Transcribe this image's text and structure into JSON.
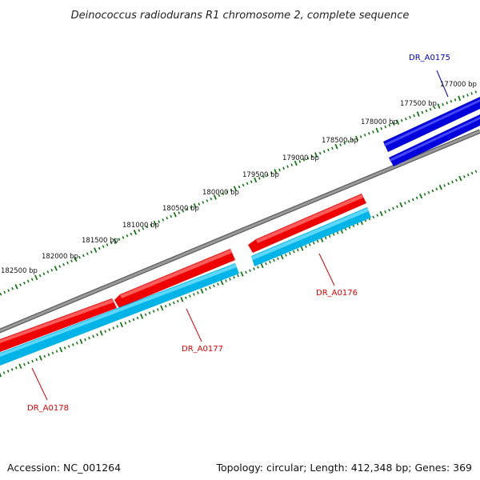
{
  "title": "Deinococcus radiodurans R1 chromosome 2, complete sequence",
  "footer": {
    "accession": "Accession: NC_001264",
    "summary": "Topology: circular; Length: 412,348 bp; Genes: 369"
  },
  "colors": {
    "backbone": "#808080",
    "forward_gene": "#0000dd",
    "reverse_gene": "#ee0000",
    "cds": "#00b4e8",
    "ticks": "#137a13",
    "label_forward": "#0000cc",
    "label_reverse": "#dd0000"
  },
  "scale_labels": [
    "177000 bp",
    "177500 bp",
    "178000 bp",
    "178500 bp",
    "179000 bp",
    "179500 bp",
    "180000 bp",
    "180500 bp",
    "181000 bp",
    "181500 bp",
    "182000 bp",
    "182500 bp"
  ],
  "genes": [
    {
      "label": "DR_A0175",
      "strand": "forward"
    },
    {
      "label": "DR_A0176",
      "strand": "reverse"
    },
    {
      "label": "DR_A0177",
      "strand": "reverse"
    },
    {
      "label": "DR_A0178",
      "strand": "reverse"
    }
  ]
}
